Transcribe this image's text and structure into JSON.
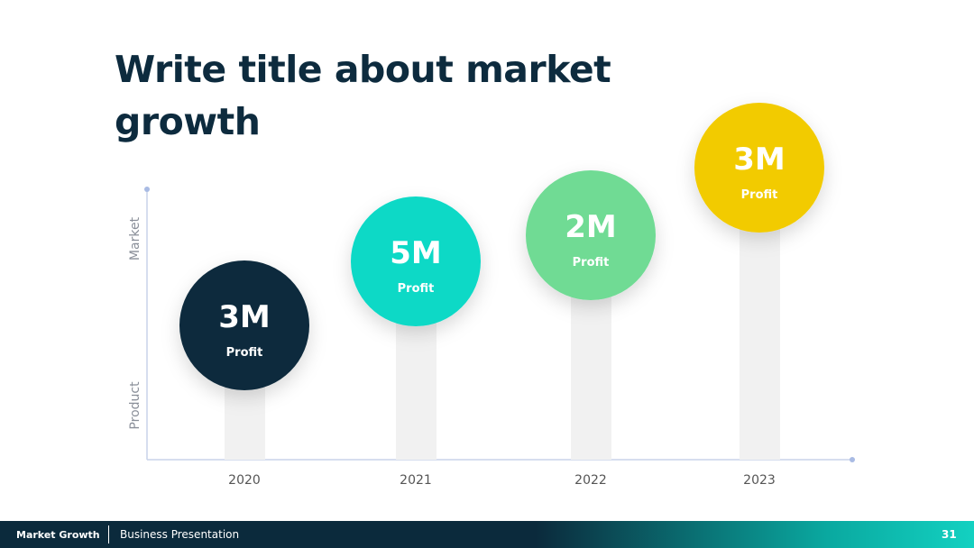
{
  "title": "Write title about market growth",
  "axis": {
    "top": "Market",
    "bottom": "Product"
  },
  "items": [
    {
      "year": "2020",
      "value": "3M",
      "label": "Profit"
    },
    {
      "year": "2021",
      "value": "5M",
      "label": "Profit"
    },
    {
      "year": "2022",
      "value": "2M",
      "label": "Profit"
    },
    {
      "year": "2023",
      "value": "3M",
      "label": "Profit"
    }
  ],
  "footer": {
    "left": "Market Growth",
    "right": "Business Presentation",
    "page": "31"
  }
}
